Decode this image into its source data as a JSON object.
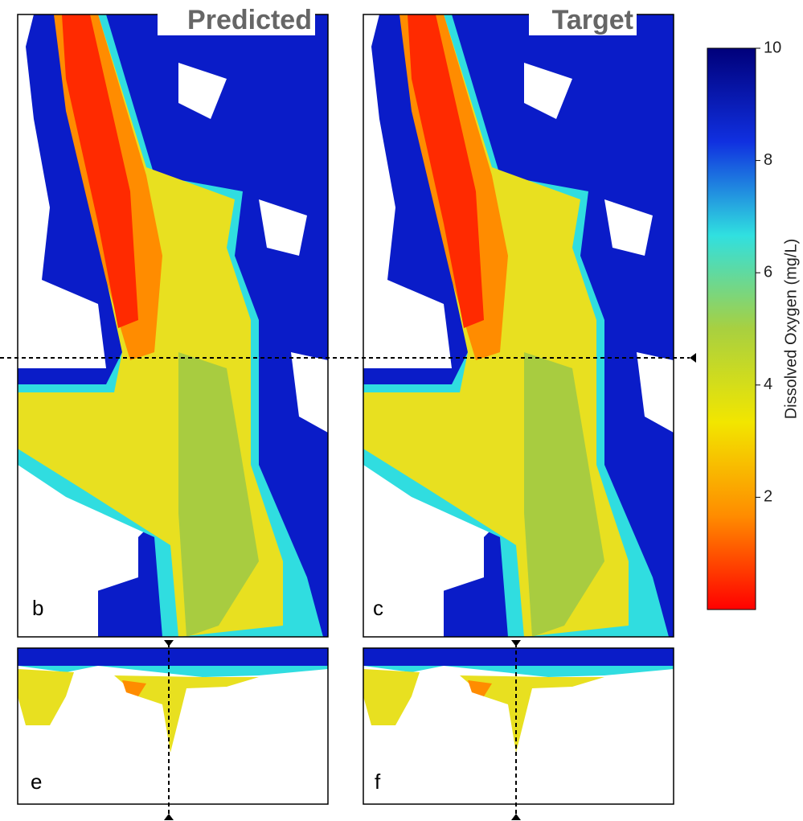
{
  "chart_data": {
    "type": "map",
    "panels": [
      {
        "title": "Predicted",
        "label": "b"
      },
      {
        "title": "Target",
        "label": "c"
      },
      {
        "label": "e"
      },
      {
        "label": "f"
      }
    ],
    "colorbar": {
      "label": "Dissolved Oxygen (mg/L)",
      "lim": [
        0,
        10
      ],
      "ticks": [
        2,
        4,
        6,
        8,
        10
      ],
      "colors": [
        "#ff0000",
        "#ff8c00",
        "#f2e600",
        "#a8d040",
        "#30e0e0",
        "#1030e0",
        "#00007a"
      ]
    }
  }
}
